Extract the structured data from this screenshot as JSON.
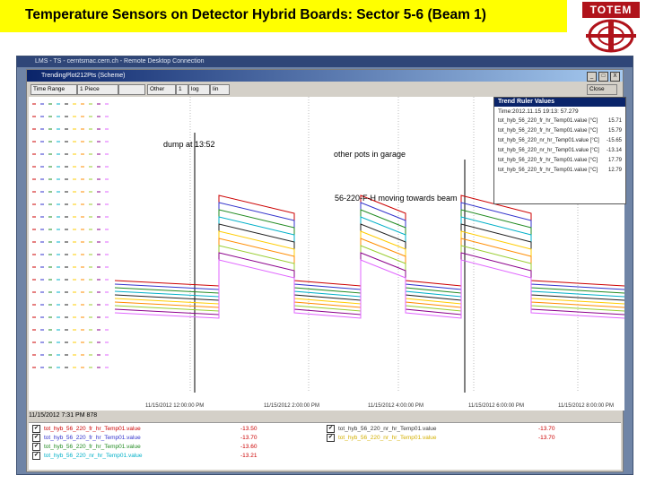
{
  "slide": {
    "title": "Temperature Sensors on Detector Hybrid Boards: Sector 5-6 (Beam 1)",
    "logo_text": "TOTEM"
  },
  "remote_desktop": {
    "title": "LMS - TS - cerntsmac.cern.ch - Remote Desktop Connection"
  },
  "window": {
    "title": "TrendingPlot212Pts (Scheme)",
    "controls": [
      "_",
      "□",
      "X"
    ],
    "toolbar": {
      "time_range": "Time Range",
      "range_value": "1 Piece",
      "blank": "",
      "other": "Other",
      "num": "1",
      "log": "log",
      "lin": "lin"
    },
    "close_label": "Close"
  },
  "ruler": {
    "title": "Trend Ruler Values",
    "time": "Time:2012.11.15 19:13: 57.279",
    "rows": [
      {
        "label": "tot_hyb_56_220_fr_hr_Temp01.value [°C]",
        "value": "15.71"
      },
      {
        "label": "tot_hyb_56_220_fr_hr_Temp01.value [°C]",
        "value": "15.79"
      },
      {
        "label": "tot_hyb_56_220_nr_hr_Temp01.value [°C]",
        "value": "-15.65"
      },
      {
        "label": "tot_hyb_56_220_nr_hr_Temp01.value [°C]",
        "value": "-13.14"
      },
      {
        "label": "tot_hyb_56_220_fr_hr_Temp01.value [°C]",
        "value": "17.79"
      },
      {
        "label": "tot_hyb_56_220_fr_hr_Temp01.value [°C]",
        "value": "12.79"
      }
    ]
  },
  "annotations": {
    "dump": "dump at 13:52",
    "garage": "other pots in garage",
    "moving": "56-220-F-H moving towards beam"
  },
  "x_ticks": [
    "11/15/2012 12:00:00 PM",
    "11/15/2012 2:00:00 PM",
    "11/15/2012 4:00:00 PM",
    "11/15/2012 6:00:00 PM",
    "11/15/2012 8:00:00 PM"
  ],
  "status": "11/15/2012 7:31 PM 878",
  "legend": [
    {
      "name": "tot_hyb_56_220_fr_hr_Temp01.value",
      "value": "-13.50",
      "color": "#cc0000"
    },
    {
      "name": "tot_hyb_56_220_fr_hr_Temp01.value",
      "value": "-13.70",
      "color": "#3333cc"
    },
    {
      "name": "tot_hyb_56_220_fr_hr_Temp01.value",
      "value": "-13.60",
      "color": "#228b22"
    },
    {
      "name": "tot_hyb_56_220_nr_hr_Temp01.value",
      "value": "-13.21",
      "color": "#00b0c8"
    },
    {
      "name": "tot_hyb_56_220_nr_hr_Temp01.value",
      "value": "-13.70",
      "color": "#333333"
    },
    {
      "name": "tot_hyb_56_220_nr_hr_Temp01.value",
      "value": "-13.70",
      "color": "#d4b000"
    }
  ],
  "colors": {
    "title_bg": "#ffff00",
    "series": [
      "#cc0000",
      "#3333cc",
      "#228b22",
      "#00b0c8",
      "#222222",
      "#ffcc00",
      "#ff8c00",
      "#9acd32",
      "#8b008b",
      "#e066ff"
    ]
  }
}
